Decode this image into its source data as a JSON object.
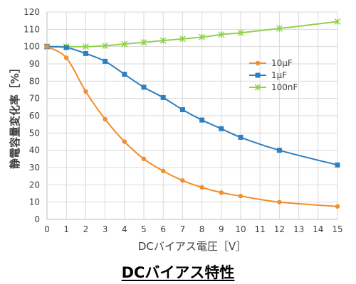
{
  "chart_data": {
    "type": "line",
    "caption": "DCバイアス特性",
    "xlabel": "DCバイアス電圧［V］",
    "ylabel": "静電容量変化率［%］",
    "xlim": [
      0,
      15
    ],
    "ylim": [
      0,
      120
    ],
    "xticks": [
      "0",
      "1",
      "2",
      "3",
      "4",
      "5",
      "6",
      "7",
      "8",
      "9",
      "10",
      "11",
      "12",
      "13",
      "14",
      "15"
    ],
    "yticks": [
      "0",
      "10",
      "20",
      "30",
      "40",
      "50",
      "60",
      "70",
      "80",
      "90",
      "100",
      "110",
      "120"
    ],
    "grid": true,
    "legend_position": "upper-right",
    "series": [
      {
        "name": "10μF",
        "color": "#f28e2b",
        "marker": "circle",
        "x": [
          0,
          1,
          2,
          3,
          4,
          5,
          6,
          7,
          8,
          9,
          10,
          12,
          15
        ],
        "y": [
          100,
          93.5,
          74,
          58,
          45,
          35,
          28,
          22.5,
          18.5,
          15.5,
          13.5,
          10,
          7.5
        ]
      },
      {
        "name": "1μF",
        "color": "#2e7fc2",
        "marker": "square",
        "x": [
          0,
          1,
          2,
          3,
          4,
          5,
          6,
          7,
          8,
          9,
          10,
          12,
          15
        ],
        "y": [
          100,
          99.5,
          96,
          91.5,
          84,
          76.5,
          70.5,
          63.5,
          57.5,
          52.5,
          47.5,
          40,
          31.5
        ]
      },
      {
        "name": "100nF",
        "color": "#92d050",
        "marker": "star",
        "x": [
          0,
          1,
          2,
          3,
          4,
          5,
          6,
          7,
          8,
          9,
          10,
          12,
          15
        ],
        "y": [
          100,
          100,
          100,
          100.5,
          101.5,
          102.5,
          103.5,
          104.5,
          105.5,
          107,
          108,
          110.5,
          114.5
        ]
      }
    ]
  }
}
